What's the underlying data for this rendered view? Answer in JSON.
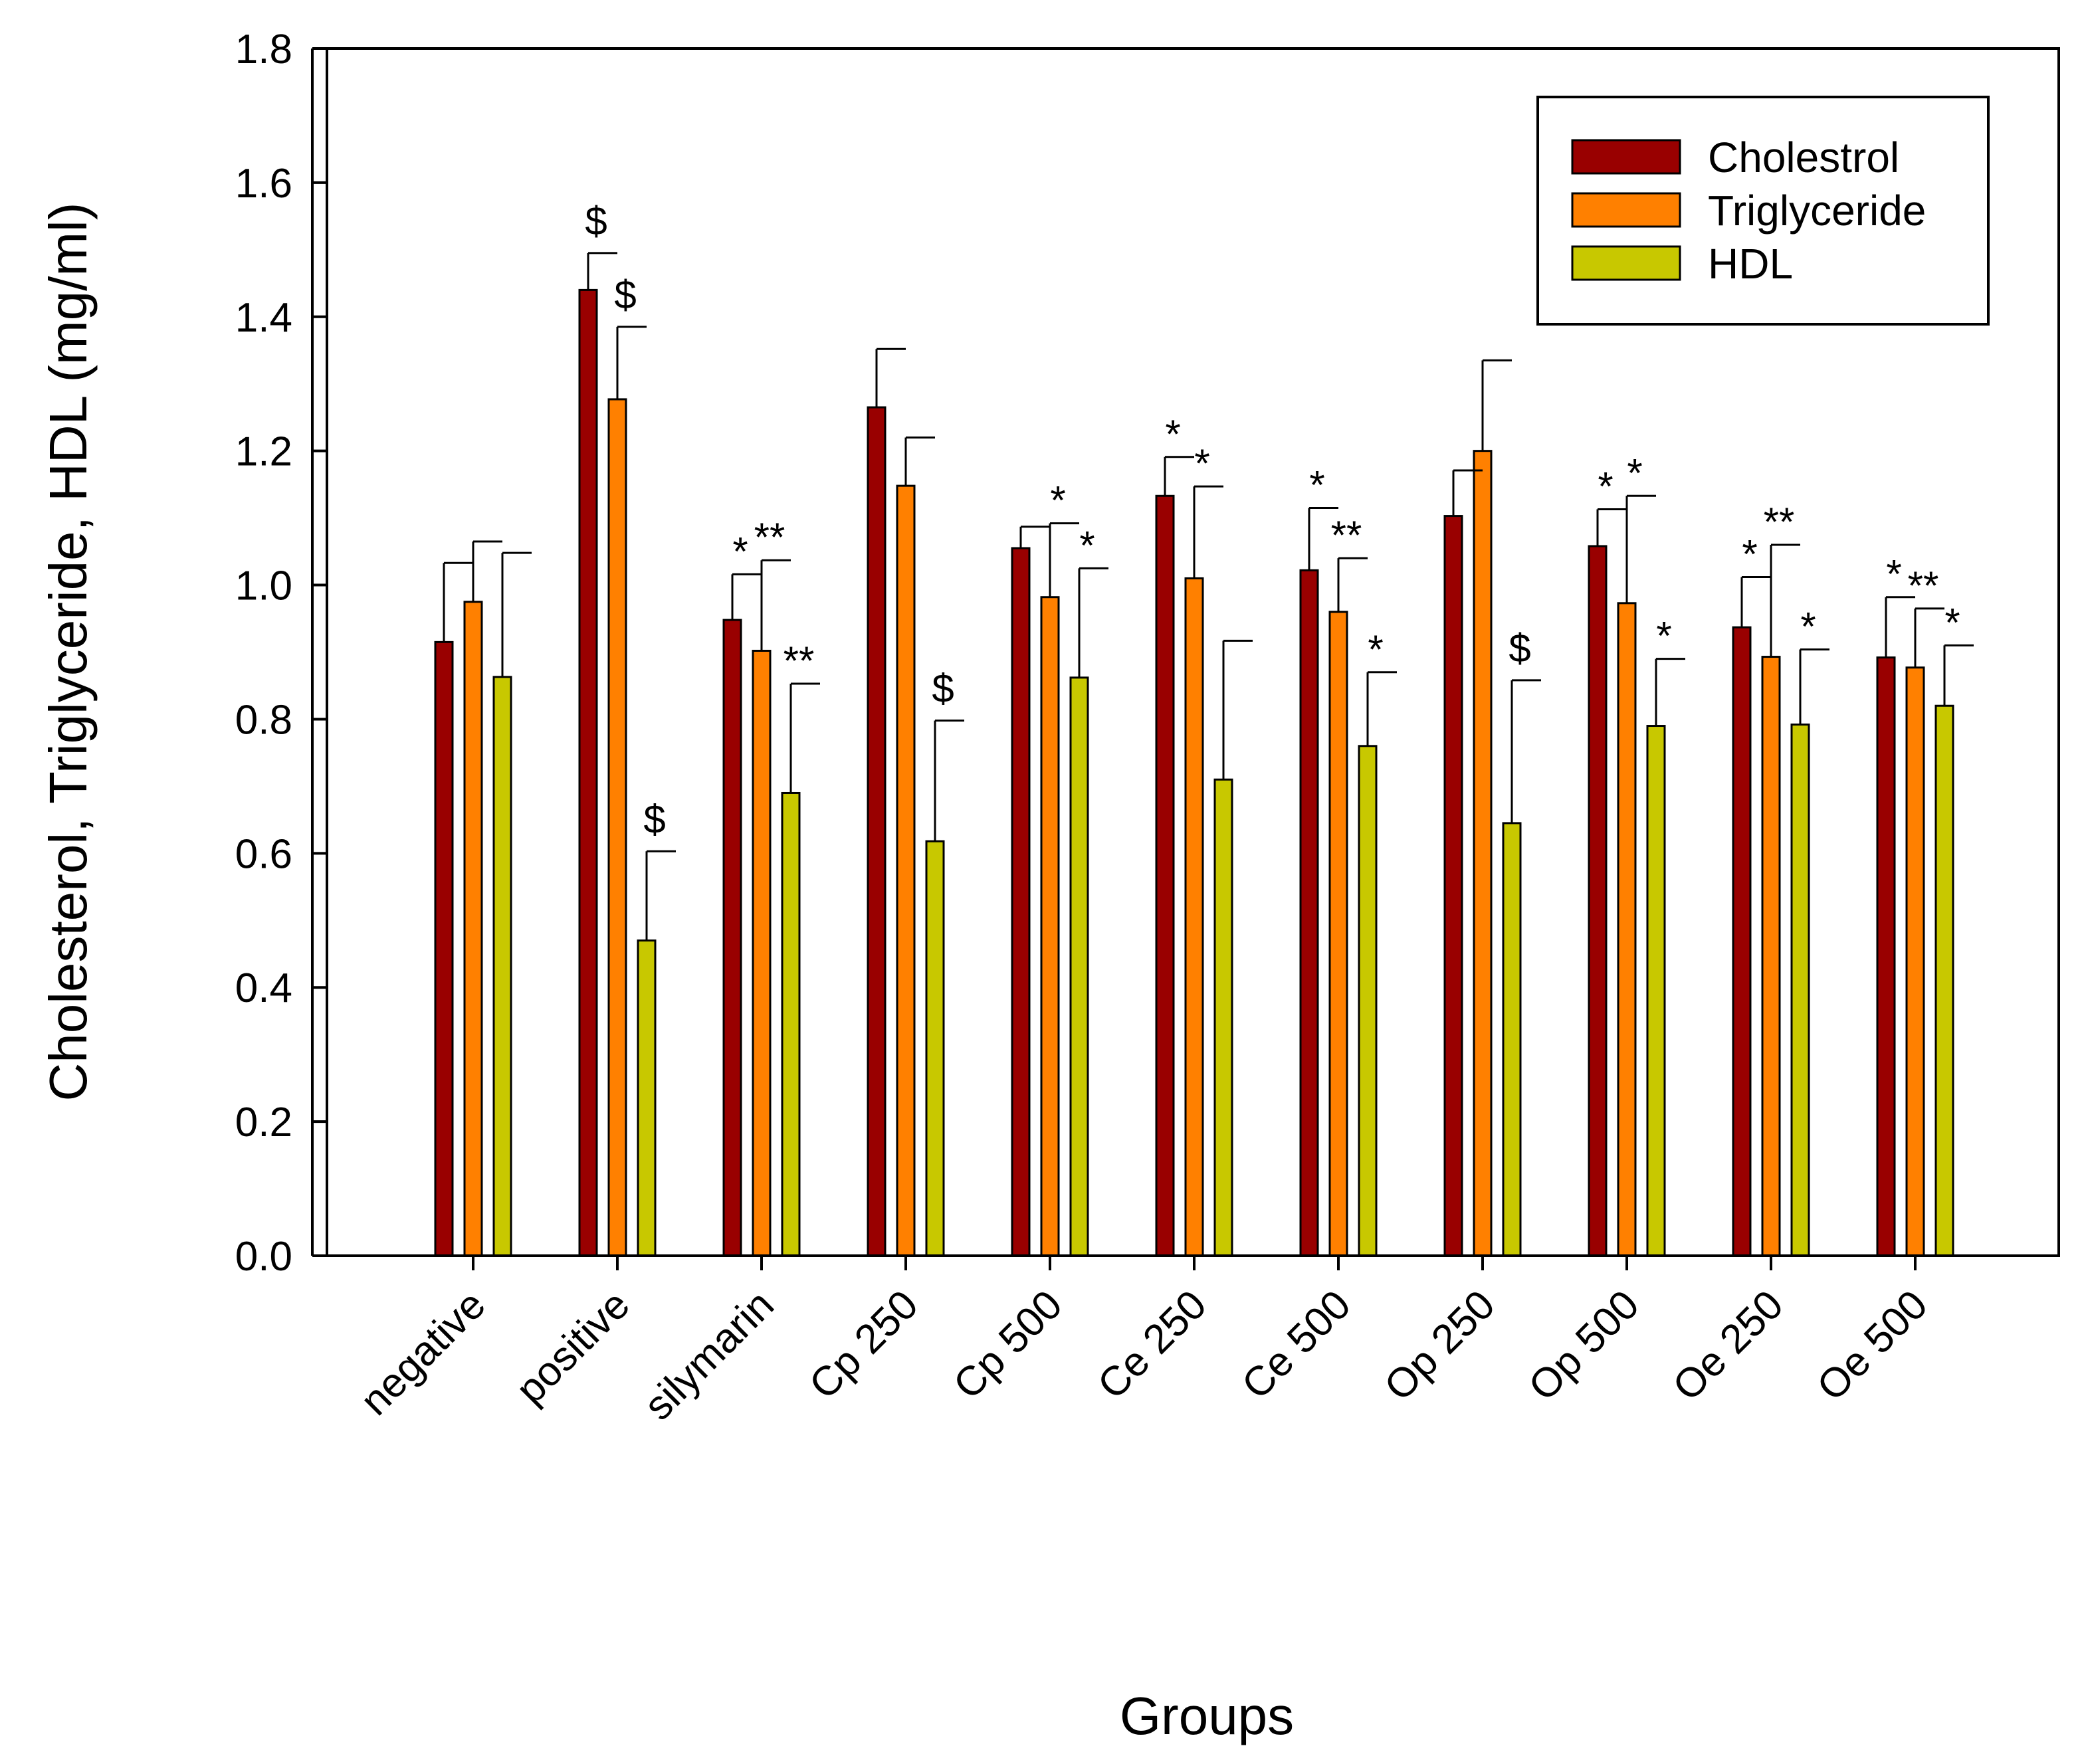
{
  "chart_data": {
    "type": "bar",
    "title": "",
    "xlabel": "Groups",
    "ylabel": "Cholesterol, Triglyceride, HDL (mg/ml)",
    "ylim": [
      0,
      1.8
    ],
    "yticks": [
      0.0,
      0.2,
      0.4,
      0.6,
      0.8,
      1.0,
      1.2,
      1.4,
      1.6,
      1.8
    ],
    "ytick_labels": [
      "0.0",
      "0.2",
      "0.4",
      "0.6",
      "0.8",
      "1.0",
      "1.2",
      "1.4",
      "1.6",
      "1.8"
    ],
    "grid": false,
    "legend_position": "top-right",
    "categories": [
      "negative",
      "positive",
      "silymarin",
      "Cp 250",
      "Cp 500",
      "Ce 250",
      "Ce 500",
      "Op 250",
      "Op 500",
      "Oe 250",
      "Oe 500"
    ],
    "series": [
      {
        "name": "Cholestrol",
        "color": "#990000",
        "values": [
          0.915,
          1.44,
          0.948,
          1.265,
          1.055,
          1.133,
          1.022,
          1.103,
          1.058,
          0.937,
          0.892
        ],
        "errors": [
          0.118,
          0.055,
          0.068,
          0.087,
          0.032,
          0.058,
          0.093,
          0.068,
          0.055,
          0.075,
          0.09
        ],
        "annotations": [
          "",
          "$",
          "*",
          "",
          "",
          "*",
          "*",
          "",
          "*",
          "*",
          "*"
        ]
      },
      {
        "name": "Triglyceride",
        "color": "#ff8000",
        "values": [
          0.975,
          1.277,
          0.902,
          1.148,
          0.982,
          1.01,
          0.96,
          1.2,
          0.973,
          0.893,
          0.877
        ],
        "errors": [
          0.09,
          0.108,
          0.135,
          0.072,
          0.11,
          0.137,
          0.08,
          0.135,
          0.16,
          0.167,
          0.088
        ],
        "annotations": [
          "",
          "$",
          "**",
          "",
          "*",
          "*",
          "**",
          "",
          "*",
          "**",
          "**"
        ]
      },
      {
        "name": "HDL",
        "color": "#c8c800",
        "values": [
          0.863,
          0.47,
          0.69,
          0.618,
          0.862,
          0.71,
          0.76,
          0.645,
          0.79,
          0.792,
          0.82
        ],
        "errors": [
          0.185,
          0.133,
          0.163,
          0.18,
          0.163,
          0.207,
          0.11,
          0.213,
          0.1,
          0.112,
          0.09
        ],
        "annotations": [
          "",
          "$",
          "**",
          "$",
          "*",
          "",
          "*",
          "$",
          "*",
          "*",
          "*"
        ]
      }
    ]
  }
}
